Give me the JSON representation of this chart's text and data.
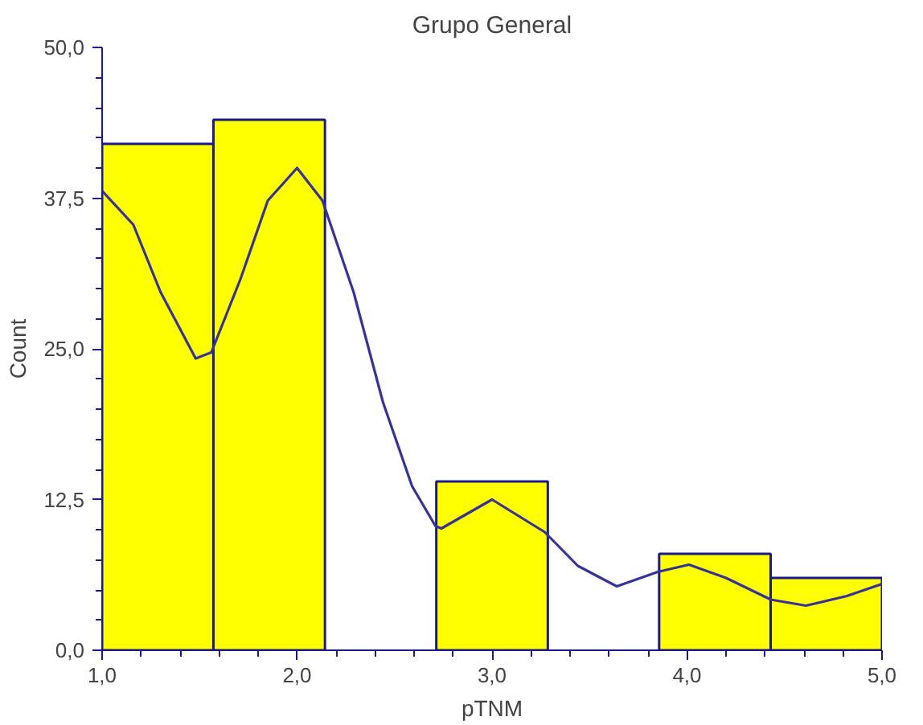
{
  "chart_data": {
    "type": "histogram",
    "title": "Grupo General",
    "xlabel": "pTNM",
    "ylabel": "Count",
    "xlim": [
      1,
      5
    ],
    "ylim": [
      0,
      50
    ],
    "xticks": [
      {
        "value": 1,
        "label": "1,0"
      },
      {
        "value": 2,
        "label": "2,0"
      },
      {
        "value": 3,
        "label": "3,0"
      },
      {
        "value": 4,
        "label": "4,0"
      },
      {
        "value": 5,
        "label": "5,0"
      }
    ],
    "yticks": [
      {
        "value": 0,
        "label": "0,0"
      },
      {
        "value": 12.5,
        "label": "12,5"
      },
      {
        "value": 25,
        "label": "25,0"
      },
      {
        "value": 37.5,
        "label": "37,5"
      },
      {
        "value": 50,
        "label": "50,0"
      }
    ],
    "grid": false,
    "series": [
      {
        "color": "#ffff00",
        "bins": [
          1,
          1.571,
          2.143,
          2.714,
          3.286,
          3.857,
          4.429,
          5
        ],
        "values": [
          42,
          44,
          0,
          14,
          0,
          8,
          6
        ]
      },
      {
        "type": "line",
        "color": "#33339a",
        "x": [
          1.0,
          1.16,
          1.3,
          1.48,
          1.56,
          1.71,
          1.85,
          2.0,
          2.13,
          2.29,
          2.44,
          2.59,
          2.71,
          2.74,
          3.0,
          3.27,
          3.44,
          3.64,
          3.85,
          4.01,
          4.2,
          4.43,
          4.61,
          4.82,
          5.0
        ],
        "values": [
          38.1,
          35.3,
          29.7,
          24.2,
          24.7,
          30.8,
          37.3,
          40.0,
          37.3,
          29.7,
          20.6,
          13.6,
          10.3,
          10.1,
          12.5,
          9.8,
          7.0,
          5.3,
          6.5,
          7.1,
          6.0,
          4.2,
          3.7,
          4.5,
          5.5
        ]
      }
    ]
  }
}
